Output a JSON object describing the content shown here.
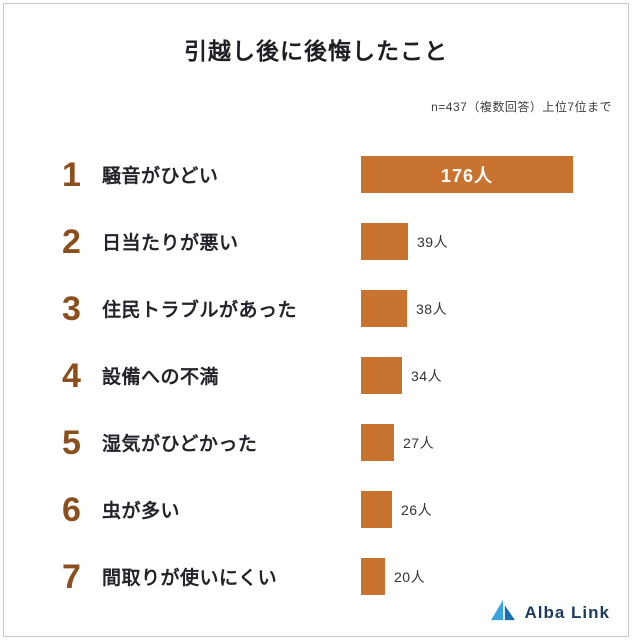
{
  "header": {
    "title": "引越し後に後悔したこと",
    "note": "n=437（複数回答）上位7位まで"
  },
  "chart_data": {
    "type": "bar",
    "orientation": "horizontal",
    "title": "引越し後に後悔したこと",
    "subtitle": "n=437（複数回答）上位7位まで",
    "sample_size": 437,
    "categories": [
      "騒音がひどい",
      "日当たりが悪い",
      "住民トラブルがあった",
      "設備への不満",
      "湿気がひどかった",
      "虫が多い",
      "間取りが使いにくい"
    ],
    "values": [
      176,
      39,
      38,
      34,
      27,
      26,
      20
    ],
    "value_unit": "人",
    "xlim": [
      0,
      176
    ],
    "legend": "none",
    "grid": false,
    "bar_color": "#c8732f"
  },
  "rows": [
    {
      "rank": "1",
      "label": "騒音がひどい",
      "value_label": "176人"
    },
    {
      "rank": "2",
      "label": "日当たりが悪い",
      "value_label": "39人"
    },
    {
      "rank": "3",
      "label": "住民トラブルがあった",
      "value_label": "38人"
    },
    {
      "rank": "4",
      "label": "設備への不満",
      "value_label": "34人"
    },
    {
      "rank": "5",
      "label": "湿気がひどかった",
      "value_label": "27人"
    },
    {
      "rank": "6",
      "label": "虫が多い",
      "value_label": "26人"
    },
    {
      "rank": "7",
      "label": "間取りが使いにくい",
      "value_label": "20人"
    }
  ],
  "footer": {
    "brand": "Alba Link"
  },
  "colors": {
    "bar": "#c8732f",
    "rank": "#8a4f1d",
    "text": "#23232b",
    "brand_navy": "#1c3b5e",
    "logo_blue_light": "#3aa3de",
    "logo_blue_dark": "#1b6cb0"
  }
}
